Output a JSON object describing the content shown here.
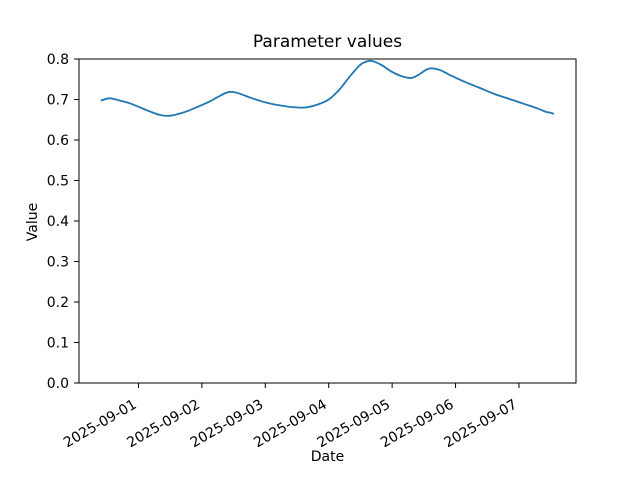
{
  "figure": {
    "background": "#ffffff",
    "text_color": "#000000",
    "spine_color": "#000000"
  },
  "chart_data": {
    "type": "line",
    "title": "Parameter values",
    "xlabel": "Date",
    "ylabel": "Value",
    "grid": false,
    "legend": false,
    "line_color": "#1f77b4",
    "ylim": [
      0.0,
      0.8
    ],
    "y_tick_values": [
      0.0,
      0.1,
      0.2,
      0.3,
      0.4,
      0.5,
      0.6,
      0.7,
      0.8
    ],
    "y_tick_labels": [
      "0.0",
      "0.1",
      "0.2",
      "0.3",
      "0.4",
      "0.5",
      "0.6",
      "0.7",
      "0.8"
    ],
    "x_tick_dates": [
      "2025-09-01",
      "2025-09-02",
      "2025-09-03",
      "2025-09-04",
      "2025-09-05",
      "2025-09-06",
      "2025-09-07"
    ],
    "x_tick_labels": [
      "2025-09-01",
      "2025-09-02",
      "2025-09-03",
      "2025-09-04",
      "2025-09-05",
      "2025-09-06",
      "2025-09-07"
    ],
    "x_tick_rotation_deg": 30,
    "xlim": [
      "2025-08-31 01:30",
      "2025-09-07 21:35"
    ],
    "series": [
      {
        "name": "parameter-values",
        "x": [
          "2025-08-31 10:00",
          "2025-08-31 13:00",
          "2025-08-31 16:00",
          "2025-08-31 21:00",
          "2025-09-01 03:00",
          "2025-09-01 08:00",
          "2025-09-01 12:00",
          "2025-09-01 17:00",
          "2025-09-01 21:00",
          "2025-09-02 02:00",
          "2025-09-02 06:00",
          "2025-09-02 09:00",
          "2025-09-02 11:00",
          "2025-09-02 14:00",
          "2025-09-02 19:00",
          "2025-09-03 00:00",
          "2025-09-03 05:00",
          "2025-09-03 09:00",
          "2025-09-03 13:00",
          "2025-09-03 16:00",
          "2025-09-03 20:00",
          "2025-09-04 00:00",
          "2025-09-04 04:00",
          "2025-09-04 08:00",
          "2025-09-04 12:00",
          "2025-09-04 15:00",
          "2025-09-04 17:00",
          "2025-09-04 20:00",
          "2025-09-05 00:00",
          "2025-09-05 03:00",
          "2025-09-05 07:00",
          "2025-09-05 10:00",
          "2025-09-05 13:00",
          "2025-09-05 15:00",
          "2025-09-05 18:00",
          "2025-09-05 22:00",
          "2025-09-06 03:00",
          "2025-09-06 09:00",
          "2025-09-06 15:00",
          "2025-09-06 21:00",
          "2025-09-07 02:00",
          "2025-09-07 07:00",
          "2025-09-07 10:00",
          "2025-09-07 12:00",
          "2025-09-07 13:00"
        ],
        "y": [
          0.698,
          0.703,
          0.699,
          0.69,
          0.674,
          0.662,
          0.66,
          0.668,
          0.678,
          0.692,
          0.706,
          0.716,
          0.719,
          0.715,
          0.703,
          0.693,
          0.686,
          0.682,
          0.68,
          0.681,
          0.688,
          0.7,
          0.724,
          0.757,
          0.786,
          0.795,
          0.794,
          0.785,
          0.768,
          0.759,
          0.753,
          0.761,
          0.774,
          0.777,
          0.773,
          0.76,
          0.745,
          0.729,
          0.713,
          0.7,
          0.689,
          0.678,
          0.67,
          0.667,
          0.665
        ]
      }
    ]
  }
}
